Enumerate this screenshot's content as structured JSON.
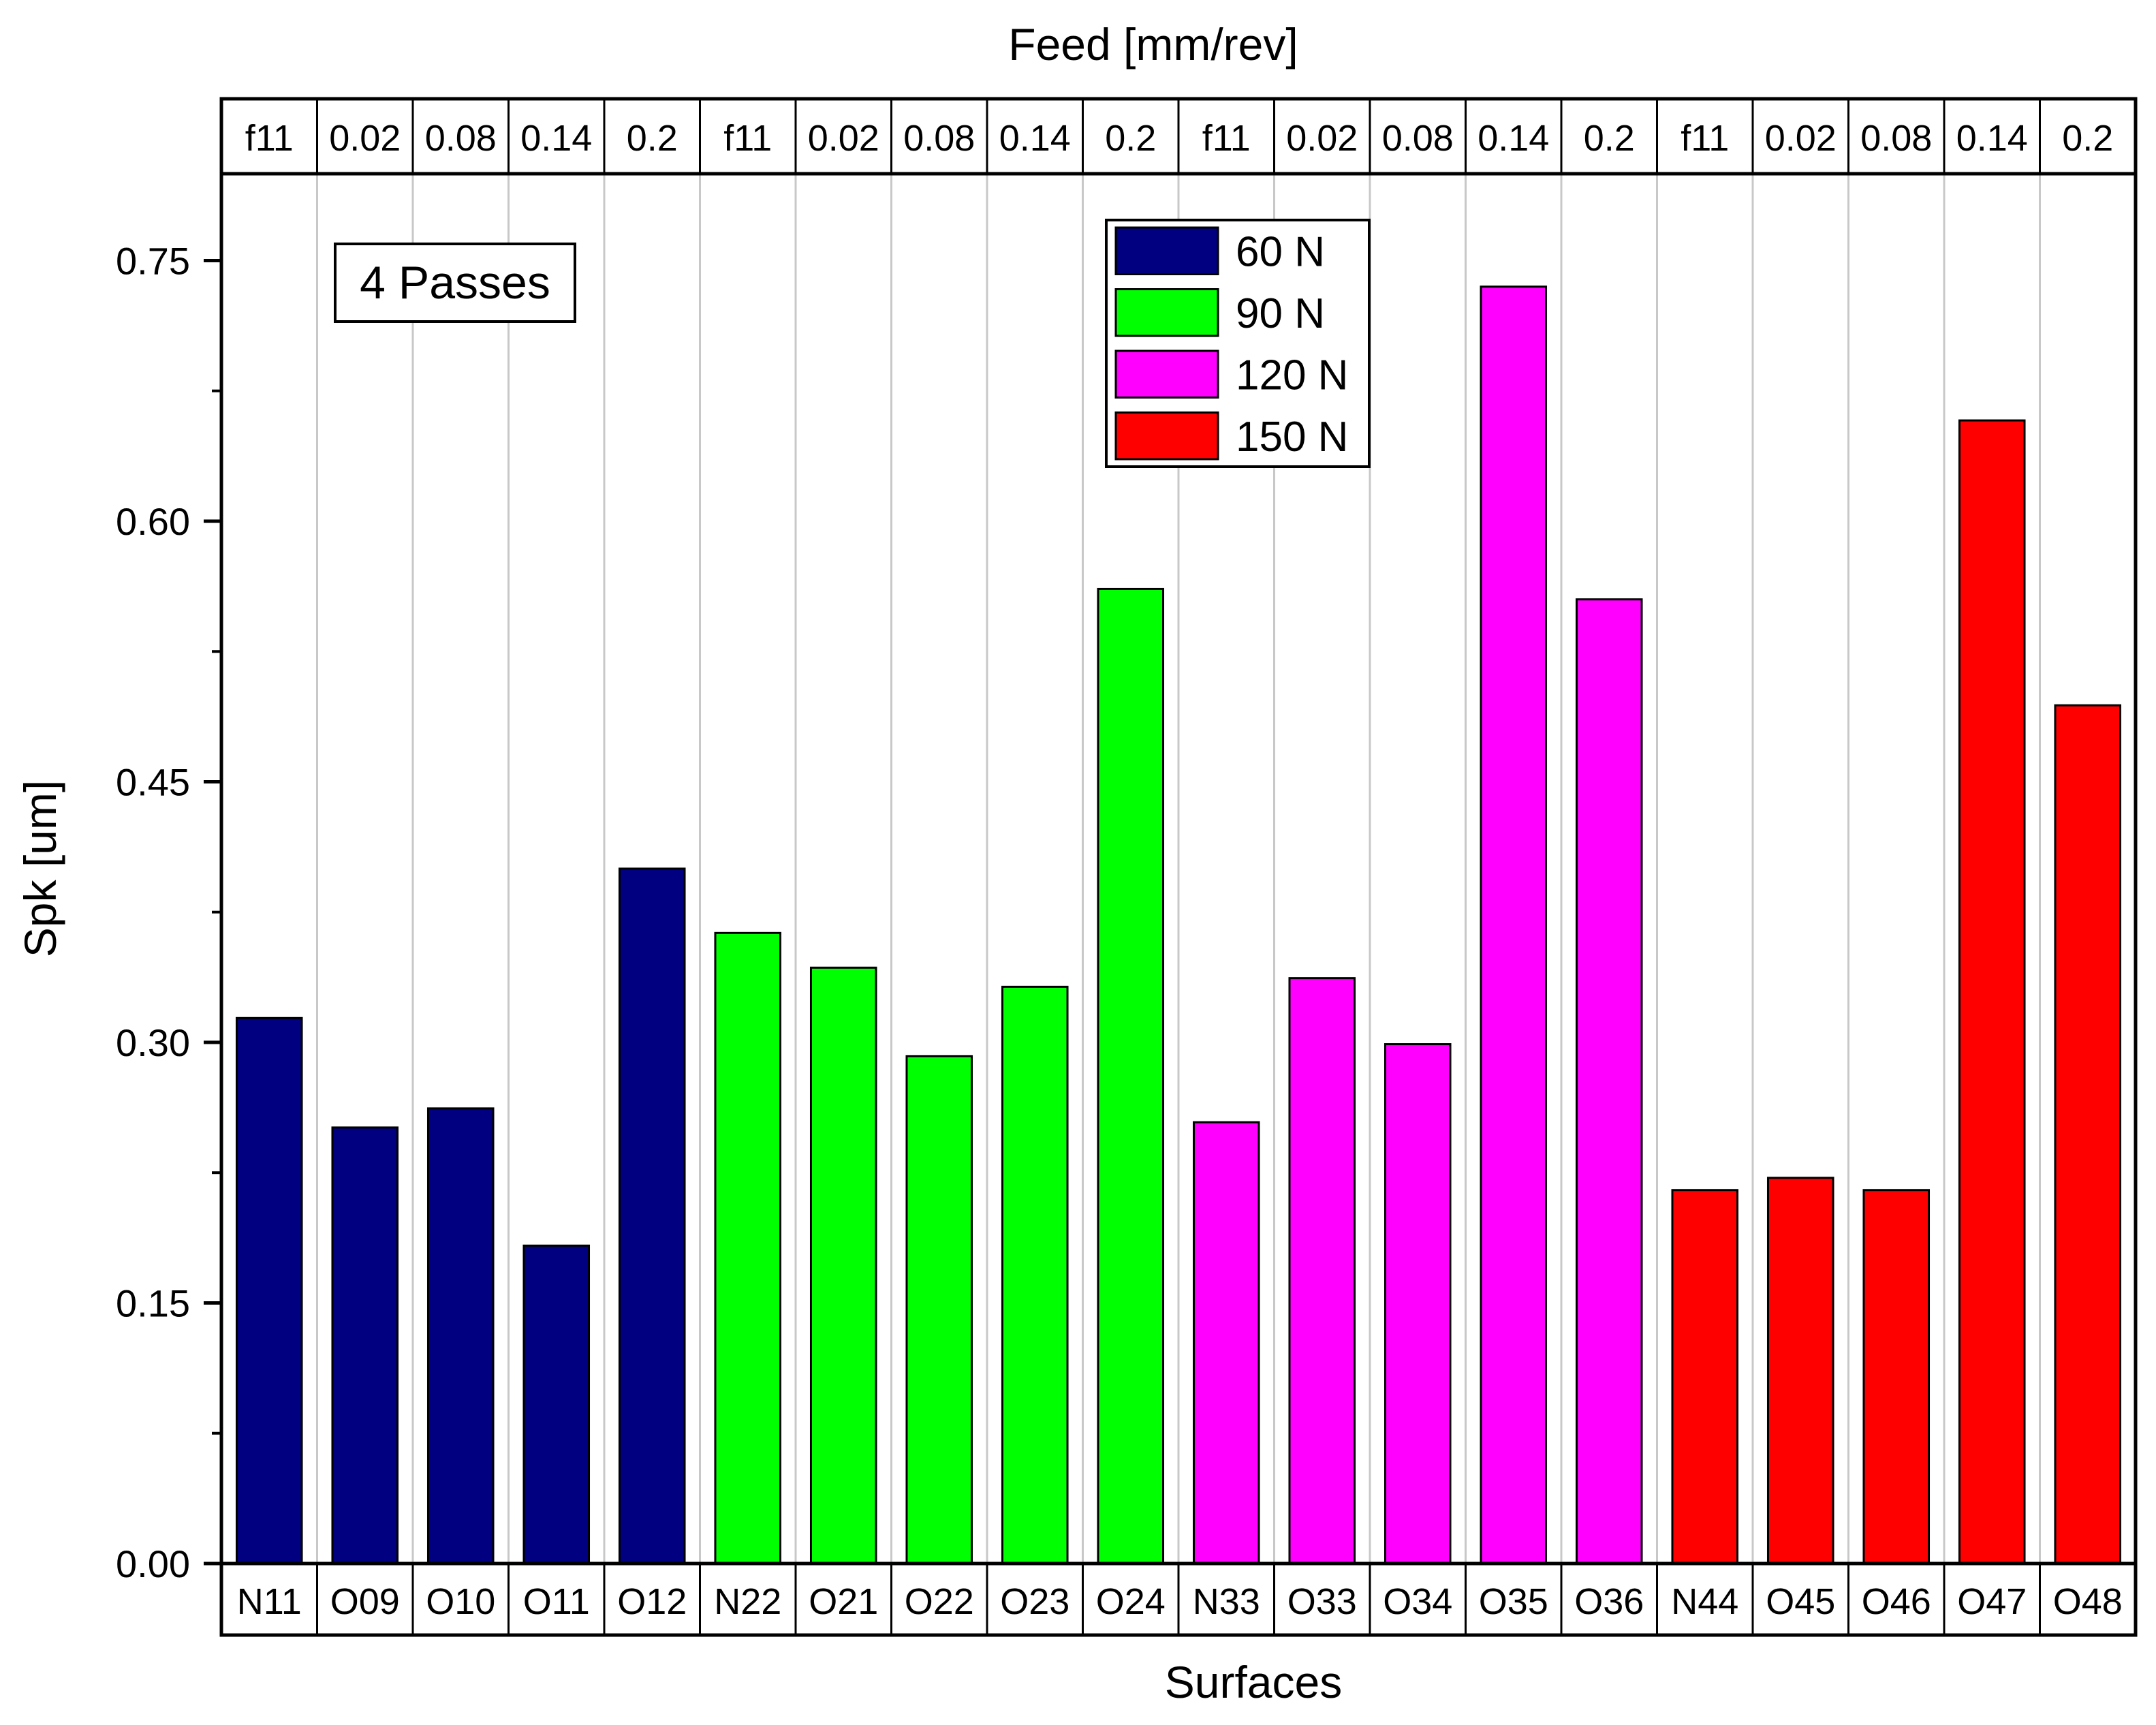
{
  "chart_data": {
    "type": "bar",
    "xlabel": "Surfaces",
    "ylabel": "Spk [um]",
    "top_axis_label": "Feed [mm/rev]",
    "annotation": "4 Passes",
    "ylim": [
      0,
      0.8
    ],
    "yticks": [
      "0.00",
      "0.15",
      "0.30",
      "0.45",
      "0.60",
      "0.75"
    ],
    "ytick_values": [
      0,
      0.15,
      0.3,
      0.45,
      0.6,
      0.75
    ],
    "grid": "vertical",
    "legend_position": "top-center",
    "categories": [
      "N11",
      "O09",
      "O10",
      "O11",
      "O12",
      "N22",
      "O21",
      "O22",
      "O23",
      "O24",
      "N33",
      "O33",
      "O34",
      "O35",
      "O36",
      "N44",
      "O45",
      "O46",
      "O47",
      "O48"
    ],
    "feeds": [
      "f11",
      "0.02",
      "0.08",
      "0.14",
      "0.2",
      "f11",
      "0.02",
      "0.08",
      "0.14",
      "0.2",
      "f11",
      "0.02",
      "0.08",
      "0.14",
      "0.2",
      "f11",
      "0.02",
      "0.08",
      "0.14",
      "0.2"
    ],
    "values": [
      0.314,
      0.251,
      0.262,
      0.183,
      0.4,
      0.363,
      0.343,
      0.292,
      0.332,
      0.561,
      0.254,
      0.337,
      0.299,
      0.735,
      0.555,
      0.215,
      0.222,
      0.215,
      0.658,
      0.494
    ],
    "series": [
      {
        "name": "60 N",
        "color": "#000080",
        "indices": [
          0,
          1,
          2,
          3,
          4
        ]
      },
      {
        "name": "90 N",
        "color": "#00ff00",
        "indices": [
          5,
          6,
          7,
          8,
          9
        ]
      },
      {
        "name": "120 N",
        "color": "#ff00ff",
        "indices": [
          10,
          11,
          12,
          13,
          14
        ]
      },
      {
        "name": "150 N",
        "color": "#ff0000",
        "indices": [
          15,
          16,
          17,
          18,
          19
        ]
      }
    ]
  }
}
